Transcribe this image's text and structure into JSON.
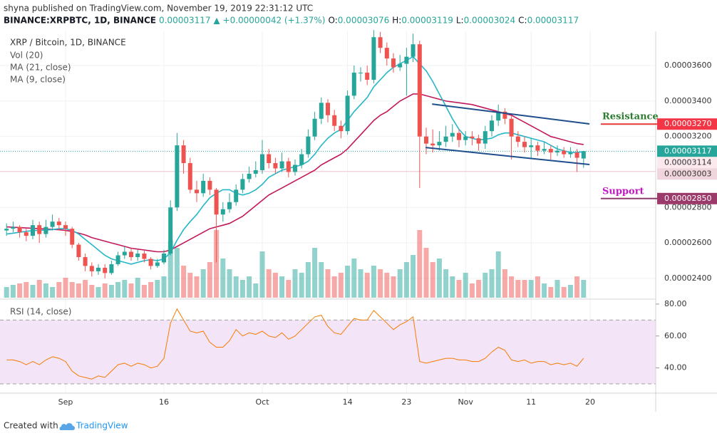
{
  "header": {
    "publisher": "shyna published on TradingView.com, November 19, 2019 22:31:12 UTC",
    "symbol": "BINANCE:XRPBTC, 1D, BINANCE",
    "last": "0.00003117",
    "change": "+0.00000042 (+1.37%)",
    "ohlc": [
      {
        "label": "O:",
        "value": "0.00003076"
      },
      {
        "label": "H:",
        "value": "0.00003119"
      },
      {
        "label": "L:",
        "value": "0.00003024"
      },
      {
        "label": "C:",
        "value": "0.00003117"
      }
    ],
    "color": "#26a69a"
  },
  "footer": {
    "created": "Created with",
    "brand": "TradingView"
  },
  "chart_data": {
    "type": "candlestick",
    "title": "XRP / Bitcoin, 1D, BINANCE",
    "up_color": "#26a69a",
    "down_color": "#ef5350",
    "grid": true,
    "xlim": [
      -1,
      99
    ],
    "xticks": [
      {
        "value": 9,
        "label": "Sep"
      },
      {
        "value": 24,
        "label": "16"
      },
      {
        "value": 39,
        "label": "Oct"
      },
      {
        "value": 52,
        "label": "14"
      },
      {
        "value": 61,
        "label": "23"
      },
      {
        "value": 70,
        "label": "Nov"
      },
      {
        "value": 80,
        "label": "11"
      },
      {
        "value": 89,
        "label": "20"
      }
    ],
    "ylim": [
      2.291e-05,
      3.793e-05
    ],
    "yticks": [
      {
        "value": 3.6e-05,
        "label": "0.00003600"
      },
      {
        "value": 3.4e-05,
        "label": "0.00003400"
      },
      {
        "value": 3.2e-05,
        "label": "0.00003200"
      },
      {
        "value": 2.8e-05,
        "label": "0.00002800"
      },
      {
        "value": 2.6e-05,
        "label": "0.00002600"
      },
      {
        "value": 2.4e-05,
        "label": "0.00002400"
      }
    ],
    "open": [
      2.67e-05,
      2.68e-05,
      2.69e-05,
      2.66e-05,
      2.64e-05,
      2.7e-05,
      2.65e-05,
      2.69e-05,
      2.72e-05,
      2.7e-05,
      2.68e-05,
      2.59e-05,
      2.52e-05,
      2.47e-05,
      2.44e-05,
      2.46e-05,
      2.43e-05,
      2.48e-05,
      2.53e-05,
      2.55e-05,
      2.52e-05,
      2.54e-05,
      2.51e-05,
      2.47e-05,
      2.49e-05,
      2.54e-05,
      2.8e-05,
      3.15e-05,
      3.05e-05,
      2.9e-05,
      2.88e-05,
      2.95e-05,
      2.9e-05,
      2.76e-05,
      2.79e-05,
      2.83e-05,
      2.9e-05,
      2.96e-05,
      2.99e-05,
      3.01e-05,
      3.1e-05,
      3.05e-05,
      3.02e-05,
      3.06e-05,
      3e-05,
      3.04e-05,
      3.1e-05,
      3.2e-05,
      3.3e-05,
      3.39e-05,
      3.32e-05,
      3.26e-05,
      3.23e-05,
      3.43e-05,
      3.56e-05,
      3.56e-05,
      3.52e-05,
      3.76e-05,
      3.7e-05,
      3.64e-05,
      3.59e-05,
      3.61e-05,
      3.65e-05,
      3.72e-05,
      3.2e-05,
      3.16e-05,
      3.15e-05,
      3.17e-05,
      3.2e-05,
      3.22e-05,
      3.18e-05,
      3.2e-05,
      3.19e-05,
      3.16e-05,
      3.23e-05,
      3.29e-05,
      3.34e-05,
      3.3e-05,
      3.2e-05,
      3.17e-05,
      3.14e-05,
      3.15e-05,
      3.12e-05,
      3.13e-05,
      3.11e-05,
      3.12e-05,
      3.1e-05,
      3.11e-05,
      3.076e-05
    ],
    "high": [
      2.71e-05,
      2.72e-05,
      2.7e-05,
      2.68e-05,
      2.73e-05,
      2.72e-05,
      2.73e-05,
      2.76e-05,
      2.74e-05,
      2.72e-05,
      2.69e-05,
      2.6e-05,
      2.54e-05,
      2.49e-05,
      2.48e-05,
      2.48e-05,
      2.5e-05,
      2.55e-05,
      2.58e-05,
      2.57e-05,
      2.56e-05,
      2.56e-05,
      2.52e-05,
      2.51e-05,
      2.56e-05,
      2.84e-05,
      3.22e-05,
      3.18e-05,
      3.08e-05,
      2.95e-05,
      2.99e-05,
      2.97e-05,
      2.91e-05,
      2.83e-05,
      2.88e-05,
      2.93e-05,
      2.99e-05,
      3.03e-05,
      3.06e-05,
      3.18e-05,
      3.13e-05,
      3.08e-05,
      3.11e-05,
      3.08e-05,
      3.07e-05,
      3.13e-05,
      3.24e-05,
      3.34e-05,
      3.42e-05,
      3.41e-05,
      3.35e-05,
      3.29e-05,
      3.46e-05,
      3.6e-05,
      3.59e-05,
      3.6e-05,
      3.8e-05,
      3.79e-05,
      3.73e-05,
      3.67e-05,
      3.66e-05,
      3.7e-05,
      3.78e-05,
      3.74e-05,
      3.25e-05,
      3.24e-05,
      3.23e-05,
      3.26e-05,
      3.27e-05,
      3.24e-05,
      3.23e-05,
      3.23e-05,
      3.21e-05,
      3.26e-05,
      3.32e-05,
      3.38e-05,
      3.36e-05,
      3.32e-05,
      3.23e-05,
      3.2e-05,
      3.19e-05,
      3.17e-05,
      3.17e-05,
      3.15e-05,
      3.15e-05,
      3.14e-05,
      3.14e-05,
      3.13e-05,
      3.119e-05
    ],
    "low": [
      2.64e-05,
      2.66e-05,
      2.63e-05,
      2.61e-05,
      2.62e-05,
      2.6e-05,
      2.63e-05,
      2.67e-05,
      2.67e-05,
      2.64e-05,
      2.57e-05,
      2.5e-05,
      2.44e-05,
      2.41e-05,
      2.42e-05,
      2.4e-05,
      2.42e-05,
      2.47e-05,
      2.51e-05,
      2.5e-05,
      2.5e-05,
      2.49e-05,
      2.45e-05,
      2.46e-05,
      2.48e-05,
      2.53e-05,
      2.78e-05,
      2.99e-05,
      2.88e-05,
      2.83e-05,
      2.86e-05,
      2.87e-05,
      2.49e-05,
      2.72e-05,
      2.77e-05,
      2.81e-05,
      2.88e-05,
      2.94e-05,
      2.97e-05,
      2.99e-05,
      3.02e-05,
      2.99e-05,
      3e-05,
      2.97e-05,
      2.98e-05,
      3.02e-05,
      3.08e-05,
      3.18e-05,
      3.27e-05,
      3.28e-05,
      3.23e-05,
      3.19e-05,
      3.21e-05,
      3.41e-05,
      3.51e-05,
      3.49e-05,
      3.5e-05,
      3.67e-05,
      3.6e-05,
      3.56e-05,
      3.57e-05,
      3.43e-05,
      3.62e-05,
      2.91e-05,
      3.1e-05,
      3.11e-05,
      3.12e-05,
      3.14e-05,
      3.17e-05,
      3.14e-05,
      3.15e-05,
      3.15e-05,
      3.12e-05,
      3.13e-05,
      3.2e-05,
      3.26e-05,
      3.27e-05,
      3.07e-05,
      3.14e-05,
      3.11e-05,
      3.08e-05,
      3.09e-05,
      3.1e-05,
      3.07e-05,
      3.09e-05,
      3.08e-05,
      3.08e-05,
      3e-05,
      3.024e-05
    ],
    "close": [
      2.68e-05,
      2.69e-05,
      2.66e-05,
      2.64e-05,
      2.7e-05,
      2.65e-05,
      2.69e-05,
      2.72e-05,
      2.7e-05,
      2.68e-05,
      2.59e-05,
      2.52e-05,
      2.47e-05,
      2.44e-05,
      2.46e-05,
      2.43e-05,
      2.48e-05,
      2.53e-05,
      2.55e-05,
      2.52e-05,
      2.54e-05,
      2.51e-05,
      2.47e-05,
      2.49e-05,
      2.54e-05,
      2.8e-05,
      3.15e-05,
      3.05e-05,
      2.9e-05,
      2.88e-05,
      2.95e-05,
      2.9e-05,
      2.76e-05,
      2.79e-05,
      2.83e-05,
      2.9e-05,
      2.96e-05,
      2.99e-05,
      3.01e-05,
      3.1e-05,
      3.05e-05,
      3.02e-05,
      3.06e-05,
      3e-05,
      3.04e-05,
      3.1e-05,
      3.2e-05,
      3.3e-05,
      3.39e-05,
      3.32e-05,
      3.26e-05,
      3.23e-05,
      3.43e-05,
      3.56e-05,
      3.56e-05,
      3.52e-05,
      3.76e-05,
      3.7e-05,
      3.64e-05,
      3.59e-05,
      3.61e-05,
      3.65e-05,
      3.72e-05,
      3.2e-05,
      3.16e-05,
      3.15e-05,
      3.17e-05,
      3.2e-05,
      3.22e-05,
      3.18e-05,
      3.2e-05,
      3.19e-05,
      3.16e-05,
      3.23e-05,
      3.29e-05,
      3.34e-05,
      3.3e-05,
      3.2e-05,
      3.17e-05,
      3.14e-05,
      3.15e-05,
      3.12e-05,
      3.13e-05,
      3.11e-05,
      3.12e-05,
      3.1e-05,
      3.11e-05,
      3.08e-05,
      3.117e-05
    ],
    "volume": {
      "name": "Vol (20)",
      "values": [
        15,
        18,
        20,
        22,
        18,
        25,
        20,
        15,
        22,
        28,
        22,
        20,
        25,
        18,
        15,
        20,
        18,
        22,
        25,
        20,
        28,
        18,
        22,
        25,
        30,
        80,
        70,
        45,
        35,
        30,
        40,
        50,
        95,
        55,
        40,
        30,
        25,
        30,
        20,
        65,
        40,
        35,
        30,
        25,
        40,
        35,
        50,
        70,
        50,
        40,
        30,
        35,
        45,
        55,
        40,
        35,
        45,
        40,
        35,
        30,
        40,
        50,
        60,
        95,
        70,
        50,
        55,
        40,
        30,
        25,
        35,
        20,
        25,
        35,
        40,
        65,
        40,
        30,
        25,
        25,
        25,
        30,
        20,
        15,
        25,
        15,
        18,
        30,
        25
      ]
    },
    "series": [
      {
        "name": "MA (21, close)",
        "color": "#c2185b",
        "values": [
          2.69e-05,
          2.688e-05,
          2.686e-05,
          2.684e-05,
          2.682e-05,
          2.68e-05,
          2.678e-05,
          2.676e-05,
          2.674e-05,
          2.67e-05,
          2.665e-05,
          2.655e-05,
          2.645e-05,
          2.63e-05,
          2.62e-05,
          2.61e-05,
          2.6e-05,
          2.59e-05,
          2.58e-05,
          2.57e-05,
          2.565e-05,
          2.56e-05,
          2.555e-05,
          2.55e-05,
          2.55e-05,
          2.56e-05,
          2.58e-05,
          2.6e-05,
          2.62e-05,
          2.64e-05,
          2.66e-05,
          2.68e-05,
          2.69e-05,
          2.7e-05,
          2.71e-05,
          2.73e-05,
          2.75e-05,
          2.78e-05,
          2.81e-05,
          2.84e-05,
          2.87e-05,
          2.89e-05,
          2.91e-05,
          2.93e-05,
          2.95e-05,
          2.97e-05,
          2.99e-05,
          3.01e-05,
          3.04e-05,
          3.06e-05,
          3.08e-05,
          3.1e-05,
          3.13e-05,
          3.17e-05,
          3.21e-05,
          3.25e-05,
          3.29e-05,
          3.32e-05,
          3.34e-05,
          3.37e-05,
          3.4e-05,
          3.42e-05,
          3.44e-05,
          3.44e-05,
          3.43e-05,
          3.42e-05,
          3.41e-05,
          3.4e-05,
          3.395e-05,
          3.39e-05,
          3.385e-05,
          3.38e-05,
          3.37e-05,
          3.36e-05,
          3.35e-05,
          3.34e-05,
          3.33e-05,
          3.32e-05,
          3.3e-05,
          3.28e-05,
          3.26e-05,
          3.24e-05,
          3.22e-05,
          3.2e-05,
          3.19e-05,
          3.18e-05,
          3.17e-05,
          3.16e-05,
          3.155e-05
        ]
      },
      {
        "name": "MA (9, close)",
        "color": "#26b6c9",
        "values": [
          2.65e-05,
          2.655e-05,
          2.66e-05,
          2.665e-05,
          2.67e-05,
          2.67e-05,
          2.672e-05,
          2.675e-05,
          2.68e-05,
          2.68e-05,
          2.67e-05,
          2.65e-05,
          2.62e-05,
          2.59e-05,
          2.56e-05,
          2.53e-05,
          2.51e-05,
          2.5e-05,
          2.49e-05,
          2.48e-05,
          2.49e-05,
          2.5e-05,
          2.505e-05,
          2.5e-05,
          2.51e-05,
          2.545e-05,
          2.615e-05,
          2.675e-05,
          2.72e-05,
          2.76e-05,
          2.81e-05,
          2.855e-05,
          2.88e-05,
          2.9e-05,
          2.9e-05,
          2.88e-05,
          2.87e-05,
          2.88e-05,
          2.9e-05,
          2.93e-05,
          2.97e-05,
          2.99e-05,
          3.01e-05,
          3.02e-05,
          3.03e-05,
          3.04e-05,
          3.06e-05,
          3.1e-05,
          3.15e-05,
          3.19e-05,
          3.22e-05,
          3.24e-05,
          3.29e-05,
          3.34e-05,
          3.38e-05,
          3.42e-05,
          3.48e-05,
          3.52e-05,
          3.56e-05,
          3.59e-05,
          3.61e-05,
          3.63e-05,
          3.65e-05,
          3.61e-05,
          3.57e-05,
          3.51e-05,
          3.44e-05,
          3.37e-05,
          3.3e-05,
          3.24e-05,
          3.2e-05,
          3.19e-05,
          3.18e-05,
          3.185e-05,
          3.19e-05,
          3.21e-05,
          3.22e-05,
          3.22e-05,
          3.21e-05,
          3.2e-05,
          3.19e-05,
          3.18e-05,
          3.17e-05,
          3.15e-05,
          3.13e-05,
          3.12e-05,
          3.11e-05,
          3.11e-05,
          3.114e-05
        ]
      }
    ],
    "trendlines": [
      {
        "x": [
          64.9,
          88.9
        ],
        "y": [
          3.383e-05,
          3.271e-05
        ],
        "color": "#1f4e8c"
      },
      {
        "x": [
          63.9,
          88.9
        ],
        "y": [
          3.138e-05,
          3.042e-05
        ],
        "color": "#1f4e8c"
      }
    ],
    "price_lines": [
      {
        "value": 3.27e-05,
        "label": "0.00003270",
        "color": "#f23645",
        "text_color": "#ffffff"
      },
      {
        "value": 3.117e-05,
        "label": "0.00003117",
        "color": "#26a69a",
        "text_color": "#ffffff",
        "line": "dotted"
      },
      {
        "value": 3.114e-05,
        "label": "0.00003114",
        "color": "#fbe9ee",
        "text_color": "#333333"
      },
      {
        "value": 3.003e-05,
        "label": "0.00003003",
        "color": "#f1d5dc",
        "text_color": "#333333",
        "line": "solid"
      },
      {
        "value": 2.85e-05,
        "label": "0.00002850",
        "color": "#9c3a6b",
        "text_color": "#ffffff"
      }
    ],
    "annotations": [
      {
        "text": "Resistance",
        "value": 3.27e-05,
        "color": "#2e7d32",
        "line_color": "#e53935"
      },
      {
        "text": "Support",
        "value": 2.85e-05,
        "color": "#c21ac2",
        "line_color": "#8e3a6e"
      }
    ],
    "rsi": {
      "name": "RSI (14, close)",
      "color": "#f57c00",
      "ylim": [
        24.2,
        83.1
      ],
      "bands": [
        30,
        70
      ],
      "yticks": [
        {
          "value": 80,
          "label": "80.00"
        },
        {
          "value": 60,
          "label": "60.00"
        },
        {
          "value": 40,
          "label": "40.00"
        }
      ],
      "values": [
        45,
        45,
        44,
        42,
        44,
        42,
        45,
        47,
        46,
        44,
        38,
        35,
        34,
        33,
        35,
        34,
        38,
        42,
        43,
        41,
        43,
        42,
        40,
        41,
        46,
        68,
        77,
        70,
        63,
        62,
        63,
        56,
        53,
        53,
        57,
        64,
        60,
        62,
        61,
        63,
        60,
        59,
        62,
        58,
        60,
        64,
        68,
        72,
        73,
        66,
        62,
        61,
        66,
        71,
        70,
        70,
        76,
        72,
        68,
        64,
        67,
        69,
        72,
        44,
        43,
        44,
        45,
        46,
        46,
        45,
        45,
        44,
        44,
        46,
        50,
        53,
        51,
        45,
        44,
        45,
        43,
        44,
        44,
        42,
        43,
        42,
        43,
        41,
        46
      ]
    }
  }
}
